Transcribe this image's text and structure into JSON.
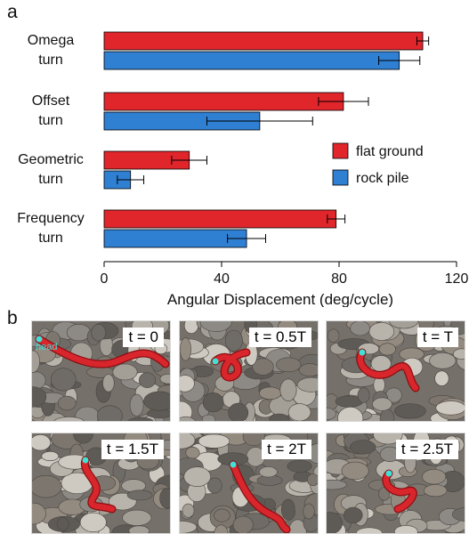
{
  "panel_a": "a",
  "panel_b": "b",
  "chart_data": {
    "type": "bar",
    "orientation": "horizontal",
    "categories": [
      [
        "Omega",
        "turn"
      ],
      [
        "Offset",
        "turn"
      ],
      [
        "Geometric",
        "turn"
      ],
      [
        "Frequency",
        "turn"
      ]
    ],
    "series": [
      {
        "name": "flat ground",
        "color": "#e0252b",
        "values": [
          108.5,
          81.5,
          29,
          79
        ],
        "errors": [
          2,
          8.5,
          6,
          3
        ]
      },
      {
        "name": "rock pile",
        "color": "#2f7fd3",
        "values": [
          100.5,
          53,
          9,
          48.5
        ],
        "errors": [
          7,
          18,
          4.5,
          6.5
        ]
      }
    ],
    "xlabel": "Angular Displacement (deg/cycle)",
    "xlim": [
      0,
      120
    ],
    "xticks": [
      0,
      40,
      80,
      120
    ],
    "grid": false,
    "legend_position": "right"
  },
  "snapshots": {
    "head_label": "head",
    "frames": [
      "t = 0",
      "t = 0.5T",
      "t = T",
      "t = 1.5T",
      "t = 2T",
      "t = 2.5T"
    ]
  }
}
